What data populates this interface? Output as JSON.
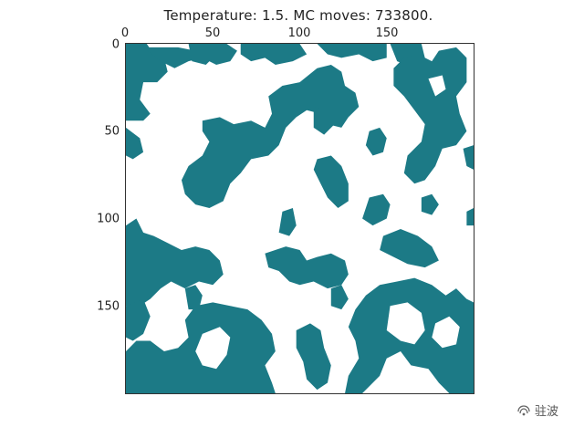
{
  "title": "Temperature: 1.5. MC moves: 733800.",
  "colors": {
    "spin_up": "#1c7a86",
    "spin_down": "#ffffff"
  },
  "axes": {
    "x_ticks": [
      "0",
      "50",
      "100",
      "150"
    ],
    "y_ticks": [
      "0",
      "50",
      "100",
      "150"
    ]
  },
  "watermark": {
    "text": "驻波",
    "icon": "wechat-channel-icon"
  }
}
